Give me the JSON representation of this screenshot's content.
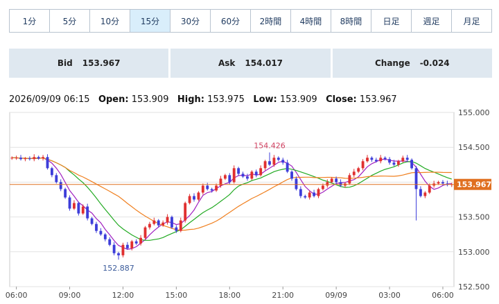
{
  "tabs": [
    {
      "label": "1分",
      "active": false
    },
    {
      "label": "5分",
      "active": false
    },
    {
      "label": "10分",
      "active": false
    },
    {
      "label": "15分",
      "active": true
    },
    {
      "label": "30分",
      "active": false
    },
    {
      "label": "60分",
      "active": false
    },
    {
      "label": "2時間",
      "active": false
    },
    {
      "label": "4時間",
      "active": false
    },
    {
      "label": "8時間",
      "active": false
    },
    {
      "label": "日足",
      "active": false
    },
    {
      "label": "週足",
      "active": false
    },
    {
      "label": "月足",
      "active": false
    }
  ],
  "quotes": {
    "bid_label": "Bid",
    "bid_value": "153.967",
    "ask_label": "Ask",
    "ask_value": "154.017",
    "change_label": "Change",
    "change_value": "-0.024"
  },
  "ohlc": {
    "datetime": "2026/09/09 06:15",
    "open_label": "Open:",
    "open": "153.909",
    "high_label": "High:",
    "high": "153.975",
    "low_label": "Low:",
    "low": "153.909",
    "close_label": "Close:",
    "close": "153.967"
  },
  "chart_data": {
    "type": "candlestick",
    "ylim": [
      152.5,
      155.0
    ],
    "yticks": [
      "155.000",
      "154.500",
      "154.000",
      "153.500",
      "153.000",
      "152.500"
    ],
    "xticks": [
      {
        "label": "06:00",
        "x": 1
      },
      {
        "label": "09:00",
        "x": 13
      },
      {
        "label": "12:00",
        "x": 25
      },
      {
        "label": "15:00",
        "x": 37
      },
      {
        "label": "18:00",
        "x": 49
      },
      {
        "label": "21:00",
        "x": 61
      },
      {
        "label": "09/09",
        "x": 73
      },
      {
        "label": "03:00",
        "x": 85
      },
      {
        "label": "06:00",
        "x": 97
      }
    ],
    "current_price": 153.967,
    "current_price_label": "153.967",
    "annotations": [
      {
        "text": "154.426",
        "x": 58,
        "y": 154.426,
        "position": "above"
      },
      {
        "text": "152.887",
        "x": 24,
        "y": 152.887,
        "position": "below"
      }
    ],
    "colors": {
      "up": "#e03030",
      "down": "#3d3dd9",
      "ma_fast": "#a020c0",
      "ma_mid": "#22aa22",
      "ma_slow": "#f08020",
      "current": "#e07020"
    },
    "closes": [
      154.35,
      154.35,
      154.33,
      154.34,
      154.33,
      154.36,
      154.34,
      154.36,
      154.2,
      154.1,
      154.0,
      153.9,
      153.78,
      153.62,
      153.7,
      153.55,
      153.65,
      153.48,
      153.4,
      153.3,
      153.25,
      153.18,
      153.1,
      152.98,
      152.95,
      153.1,
      153.05,
      153.15,
      153.12,
      153.2,
      153.35,
      153.4,
      153.45,
      153.38,
      153.42,
      153.5,
      153.35,
      153.3,
      153.45,
      153.7,
      153.8,
      153.75,
      153.85,
      153.95,
      153.9,
      153.88,
      153.95,
      154.05,
      154.1,
      154.0,
      154.2,
      154.12,
      154.08,
      154.05,
      154.15,
      154.1,
      154.2,
      154.3,
      154.25,
      154.35,
      154.32,
      154.28,
      154.15,
      154.05,
      153.9,
      153.8,
      153.78,
      153.85,
      153.8,
      153.9,
      153.95,
      154.0,
      154.05,
      154.0,
      153.95,
      153.98,
      154.1,
      154.15,
      154.2,
      154.3,
      154.35,
      154.32,
      154.3,
      154.35,
      154.33,
      154.28,
      154.25,
      154.3,
      154.35,
      154.32,
      154.2,
      153.9,
      153.8,
      153.85,
      153.95,
      153.98,
      154.0,
      153.98,
      153.96,
      153.97
    ],
    "series": [
      {
        "name": "",
        "type": "candles"
      },
      {
        "name": "",
        "period": 5
      },
      {
        "name": "",
        "period": 13
      },
      {
        "name": "",
        "period": 25
      }
    ]
  }
}
